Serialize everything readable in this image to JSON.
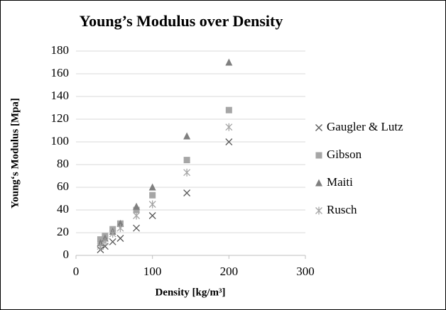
{
  "chart_data": {
    "type": "scatter",
    "title": "Young’s Modulus over Density",
    "x_label": "Density [kg/m³]",
    "y_label": "Young‘s Modulus [Mpa]",
    "x": [
      32,
      38,
      48,
      58,
      79,
      100,
      145,
      200
    ],
    "series": [
      {
        "name": "Gaugler & Lutz",
        "color": "#595959",
        "marker": "x",
        "values": [
          5,
          8,
          12,
          15,
          24,
          35,
          55,
          100
        ]
      },
      {
        "name": "Gibson",
        "color": "#a6a6a6",
        "marker": "square",
        "values": [
          14,
          17,
          23,
          28,
          40,
          53,
          84,
          128
        ]
      },
      {
        "name": "Maiti",
        "color": "#7f7f7f",
        "marker": "triangle",
        "values": [
          11,
          15,
          21,
          28,
          43,
          60,
          105,
          170
        ]
      },
      {
        "name": "Rusch",
        "color": "#a6a6a6",
        "marker": "asterisk",
        "values": [
          8,
          12,
          19,
          24,
          35,
          45,
          73,
          113
        ]
      }
    ],
    "xlim": [
      0,
      300
    ],
    "xticks": [
      0,
      100,
      200,
      300
    ],
    "ylim": [
      0,
      180
    ],
    "yticks": [
      0,
      20,
      40,
      60,
      80,
      100,
      120,
      140,
      160,
      180
    ],
    "grid": true,
    "legend": "right"
  }
}
